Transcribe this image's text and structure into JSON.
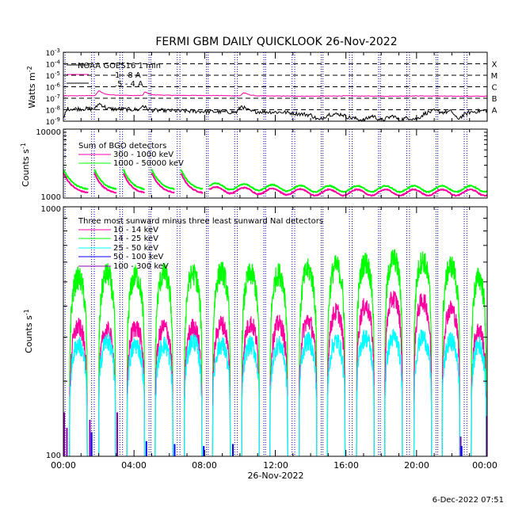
{
  "title": "FERMI GBM DAILY QUICKLOOK  26-Nov-2022",
  "footer": "6-Dec-2022 07:51",
  "xaxis": {
    "label": "26-Nov-2022",
    "ticks": [
      "00:00",
      "04:00",
      "08:00",
      "12:00",
      "16:00",
      "20:00",
      "00:00"
    ],
    "range_hours": [
      0,
      24
    ]
  },
  "colors": {
    "magenta": "#ff00a0",
    "green": "#00ff00",
    "cyan": "#00ffff",
    "blue": "#0000ff",
    "purple": "#9000b0",
    "black": "#000000"
  },
  "chart_data": [
    {
      "type": "line",
      "panel": "goes",
      "ylabel": "Watts m",
      "ylabel_sup": "-2",
      "scale": "log",
      "ylim": [
        1e-09,
        0.001
      ],
      "ytick_exponents": [
        -3,
        -4,
        -5,
        -6,
        -7,
        -8,
        -9
      ],
      "flare_classes": [
        "X",
        "M",
        "C",
        "B",
        "A"
      ],
      "flare_levels_exp": [
        -4,
        -5,
        -6,
        -7,
        -8
      ],
      "legend_title": "NOAA GOES16 1 min",
      "grid": false,
      "legend_placement": "top-left",
      "series": [
        {
          "name": "1 - 8 A",
          "color": "magenta",
          "x": [
            0,
            1.8,
            2,
            2.3,
            2.6,
            4,
            4.5,
            4.6,
            5,
            6,
            9,
            10,
            10.2,
            10.6,
            11,
            14,
            16,
            18,
            20,
            22,
            24
          ],
          "y": [
            1.6e-07,
            1.7e-07,
            4.5e-07,
            2.5e-07,
            2e-07,
            1.7e-07,
            1.8e-07,
            3.5e-07,
            2e-07,
            1.8e-07,
            1.7e-07,
            1.6e-07,
            3e-07,
            1.9e-07,
            1.6e-07,
            1.5e-07,
            1.6e-07,
            1.5e-07,
            1.6e-07,
            1.5e-07,
            1.5e-07
          ]
        },
        {
          "name": ".5 - 4 A",
          "color": "black",
          "x": [
            0,
            0.2,
            1.8,
            2,
            2.2,
            2.5,
            4.3,
            4.5,
            4.7,
            5,
            9.8,
            10.1,
            10.3,
            10.6,
            12.5,
            13,
            14,
            14.5,
            15,
            15.8,
            16,
            17,
            17.5,
            18,
            18.7,
            19,
            19.5,
            20,
            20.5,
            21,
            21.5,
            22,
            22.3,
            22.6,
            23,
            24
          ],
          "y": [
            1.5e-09,
            1.2e-08,
            1.2e-08,
            3.5e-08,
            2.5e-08,
            1.2e-08,
            1e-08,
            2.5e-08,
            1.3e-08,
            9e-09,
            6e-09,
            2.2e-08,
            1.2e-08,
            7e-09,
            6e-09,
            5e-09,
            3.5e-09,
            1.2e-09,
            4e-09,
            4e-09,
            2.5e-09,
            1.2e-09,
            3e-09,
            1.2e-09,
            3e-09,
            1.2e-09,
            2e-09,
            1.5e-09,
            5e-09,
            8e-09,
            6e-09,
            7e-09,
            1.5e-09,
            3e-09,
            6e-09,
            9e-09
          ]
        }
      ]
    },
    {
      "type": "line",
      "panel": "bgo",
      "ylabel": "Counts s",
      "ylabel_sup": "-1",
      "scale": "log",
      "ylim": [
        1000,
        10000
      ],
      "yticks": [
        "10000",
        "1000"
      ],
      "legend_title": "Sum of BGO detectors",
      "grid": false,
      "legend_placement": "top-left",
      "segments_hours": [
        [
          0,
          1.4
        ],
        [
          1.75,
          3.0
        ],
        [
          3.4,
          4.6
        ],
        [
          5.0,
          6.3
        ],
        [
          6.65,
          7.9
        ],
        [
          8.25,
          24
        ]
      ],
      "series": [
        {
          "name": "300 - 1000 keV",
          "color": "magenta",
          "peak": 2300,
          "trough": 1150
        },
        {
          "name": "1000 - 50000 keV",
          "color": "green",
          "peak": 2600,
          "trough": 1300
        }
      ]
    },
    {
      "type": "line",
      "panel": "nai",
      "ylabel": "Counts s",
      "ylabel_sup": "-1",
      "scale": "log",
      "ylim": [
        100,
        1000
      ],
      "yticks": [
        "1000",
        "100"
      ],
      "legend_title": "Three most sunward minus three least sunward NaI detectors",
      "grid": false,
      "legend_placement": "top-left",
      "orbit_hours": [
        [
          0.35,
          1.35
        ],
        [
          2.0,
          2.95
        ],
        [
          3.6,
          4.6
        ],
        [
          5.2,
          6.2
        ],
        [
          6.85,
          7.85
        ],
        [
          8.45,
          9.45
        ],
        [
          10.1,
          11.1
        ],
        [
          11.7,
          12.7
        ],
        [
          13.35,
          14.35
        ],
        [
          14.95,
          15.95
        ],
        [
          16.6,
          17.6
        ],
        [
          18.2,
          19.2
        ],
        [
          19.85,
          20.85
        ],
        [
          21.45,
          22.45
        ],
        [
          23.1,
          23.95
        ]
      ],
      "series": [
        {
          "name": "10 - 14 keV",
          "color": "magenta",
          "levels": [
            330,
            320,
            330,
            330,
            330,
            340,
            340,
            340,
            350,
            380,
            400,
            430,
            420,
            390,
            320
          ]
        },
        {
          "name": "14 - 25 keV",
          "color": "green",
          "levels": [
            520,
            540,
            530,
            540,
            540,
            550,
            540,
            540,
            560,
            580,
            600,
            620,
            610,
            580,
            520
          ]
        },
        {
          "name": "25 - 50 keV",
          "color": "cyan",
          "levels": [
            280,
            290,
            280,
            280,
            290,
            280,
            280,
            280,
            290,
            290,
            300,
            300,
            300,
            290,
            280
          ]
        },
        {
          "name": "50 - 100 keV",
          "color": "blue",
          "levels": []
        },
        {
          "name": "100 - 300 keV",
          "color": "purple",
          "levels": []
        }
      ]
    }
  ]
}
